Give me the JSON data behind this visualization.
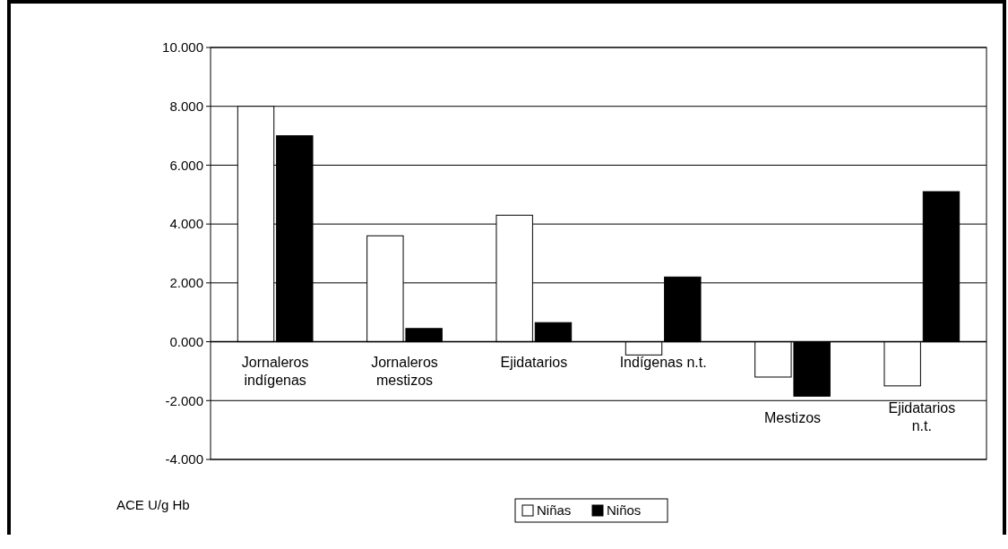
{
  "chart_data": {
    "type": "bar",
    "ylabel": "ACE U/g Hb",
    "categories": [
      "Jornaleros indígenas",
      "Jornaleros mestizos",
      "Ejidatarios",
      "Indígenas n.t.",
      "Mestizos",
      "Ejidatarios n.t."
    ],
    "series": [
      {
        "name": "Niñas",
        "color": "#ffffff",
        "values": [
          8.0,
          3.6,
          4.3,
          -0.45,
          -1.2,
          -1.5
        ]
      },
      {
        "name": "Niños",
        "color": "#000000",
        "values": [
          7.0,
          0.45,
          0.65,
          2.2,
          -1.85,
          5.1
        ]
      }
    ],
    "ylim": [
      -4,
      10
    ],
    "yticks": [
      {
        "value": -4,
        "label": "-4.000"
      },
      {
        "value": -2,
        "label": "-2.000"
      },
      {
        "value": 0,
        "label": "0.000"
      },
      {
        "value": 2,
        "label": "2.000"
      },
      {
        "value": 4,
        "label": "4.000"
      },
      {
        "value": 6,
        "label": "6.000"
      },
      {
        "value": 8,
        "label": "8.000"
      },
      {
        "value": 10,
        "label": "10.000"
      }
    ],
    "grid": "y",
    "legend": "bottom"
  }
}
